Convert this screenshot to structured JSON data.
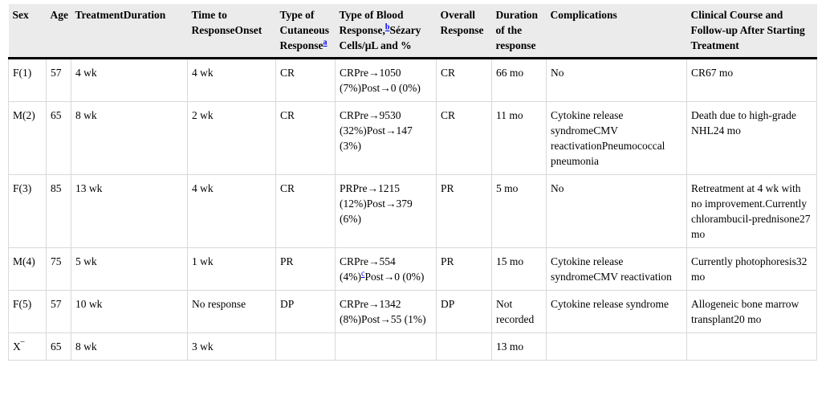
{
  "table": {
    "title": "patient-treatment-outcomes-table",
    "colors": {
      "header_background": "#ebebeb",
      "header_rule": "#000000",
      "cell_border": "#d9d9d9",
      "footnote_link": "#0000ee",
      "text": "#000000"
    },
    "column_keys": [
      "sex",
      "age",
      "treatment-duration",
      "time-to-response-onset",
      "cutaneous-response",
      "blood-response",
      "overall-response",
      "response-duration",
      "complications",
      "clinical-course"
    ],
    "header": [
      [
        "Sex"
      ],
      [
        "Age"
      ],
      [
        "TreatmentDuration"
      ],
      [
        "Time to ResponseOnset"
      ],
      [
        "Type of Cutaneous Response",
        {
          "sup": "a"
        }
      ],
      [
        "Type of Blood Response,",
        {
          "sup": "b"
        },
        "Sézary Cells/μL and %"
      ],
      [
        "Overall Response"
      ],
      [
        "Duration of the response"
      ],
      [
        "Complications"
      ],
      [
        "Clinical Course and Follow-up After Starting Treatment"
      ]
    ],
    "rows": [
      [
        [
          "F(1)"
        ],
        [
          "57"
        ],
        [
          "4 wk"
        ],
        [
          "4 wk"
        ],
        [
          "CR"
        ],
        [
          "CRPre→1050 (7%)Post→0 (0%)"
        ],
        [
          "CR"
        ],
        [
          "66 mo"
        ],
        [
          "No"
        ],
        [
          "CR67 mo"
        ]
      ],
      [
        [
          "M(2)"
        ],
        [
          "65"
        ],
        [
          "8 wk"
        ],
        [
          "2 wk"
        ],
        [
          "CR"
        ],
        [
          "CRPre→9530 (32%)Post→147 (3%)"
        ],
        [
          "CR"
        ],
        [
          "11 mo"
        ],
        [
          "Cytokine release syndromeCMV reactivationPneumococcal pneumonia"
        ],
        [
          "Death due to high-grade NHL24 mo"
        ]
      ],
      [
        [
          "F(3)"
        ],
        [
          "85"
        ],
        [
          "13 wk"
        ],
        [
          "4 wk"
        ],
        [
          "CR"
        ],
        [
          "PRPre→1215 (12%)Post→379 (6%)"
        ],
        [
          "PR"
        ],
        [
          "5 mo"
        ],
        [
          "No"
        ],
        [
          "Retreatment at 4 wk with no improvement.Currently chlorambucil-prednisone27 mo"
        ]
      ],
      [
        [
          "M(4)"
        ],
        [
          "75"
        ],
        [
          "5 wk"
        ],
        [
          "1 wk"
        ],
        [
          "PR"
        ],
        [
          "CRPre→554 (4%)",
          {
            "sup": "c"
          },
          "Post→0 (0%)"
        ],
        [
          "PR"
        ],
        [
          "15 mo"
        ],
        [
          "Cytokine release syndromeCMV reactivation"
        ],
        [
          "Currently photophoresis32 mo"
        ]
      ],
      [
        [
          "F(5)"
        ],
        [
          "57"
        ],
        [
          "10 wk"
        ],
        [
          "No response"
        ],
        [
          "DP"
        ],
        [
          "CRPre→1342 (8%)Post→55 (1%)"
        ],
        [
          "DP"
        ],
        [
          "Not recorded"
        ],
        [
          "Cytokine release syndrome"
        ],
        [
          "Allogeneic bone marrow transplant20 mo"
        ]
      ],
      [
        [
          "X‾"
        ],
        [
          "65"
        ],
        [
          "8 wk"
        ],
        [
          "3 wk"
        ],
        [
          ""
        ],
        [
          ""
        ],
        [
          ""
        ],
        [
          "13 mo"
        ],
        [
          ""
        ],
        [
          ""
        ]
      ]
    ],
    "footnote_markers": [
      "a",
      "b",
      "c"
    ]
  }
}
